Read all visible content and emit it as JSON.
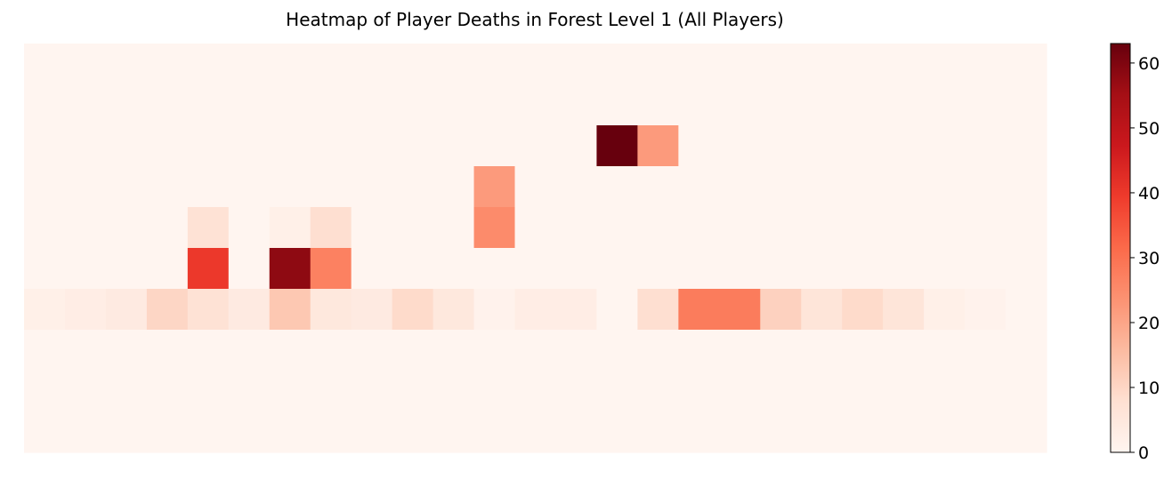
{
  "chart_data": {
    "type": "heatmap",
    "title": "Heatmap of Player Deaths in Forest Level 1 (All Players)",
    "xlabel": "",
    "ylabel": "",
    "rows": 10,
    "cols": 25,
    "grid": false,
    "colormap": "Reds",
    "colorbar": {
      "label": "",
      "range": [
        0,
        63
      ],
      "ticks": [
        0,
        10,
        20,
        30,
        40,
        50,
        60
      ],
      "tick_labels": [
        "0",
        "10",
        "20",
        "30",
        "40",
        "50",
        "60"
      ],
      "placement": "right"
    },
    "cells": [
      {
        "row": 2,
        "col": 14,
        "value": 63
      },
      {
        "row": 2,
        "col": 15,
        "value": 22
      },
      {
        "row": 3,
        "col": 11,
        "value": 22
      },
      {
        "row": 4,
        "col": 4,
        "value": 7
      },
      {
        "row": 4,
        "col": 6,
        "value": 2
      },
      {
        "row": 4,
        "col": 7,
        "value": 8
      },
      {
        "row": 4,
        "col": 11,
        "value": 25
      },
      {
        "row": 5,
        "col": 4,
        "value": 40
      },
      {
        "row": 5,
        "col": 6,
        "value": 58
      },
      {
        "row": 5,
        "col": 7,
        "value": 27
      },
      {
        "row": 6,
        "col": 0,
        "value": 2
      },
      {
        "row": 6,
        "col": 1,
        "value": 3
      },
      {
        "row": 6,
        "col": 2,
        "value": 4
      },
      {
        "row": 6,
        "col": 3,
        "value": 10
      },
      {
        "row": 6,
        "col": 4,
        "value": 7
      },
      {
        "row": 6,
        "col": 5,
        "value": 4
      },
      {
        "row": 6,
        "col": 6,
        "value": 13
      },
      {
        "row": 6,
        "col": 7,
        "value": 5
      },
      {
        "row": 6,
        "col": 8,
        "value": 4
      },
      {
        "row": 6,
        "col": 9,
        "value": 9
      },
      {
        "row": 6,
        "col": 10,
        "value": 5
      },
      {
        "row": 6,
        "col": 11,
        "value": 1
      },
      {
        "row": 6,
        "col": 12,
        "value": 3
      },
      {
        "row": 6,
        "col": 13,
        "value": 3
      },
      {
        "row": 6,
        "col": 14,
        "value": 0
      },
      {
        "row": 6,
        "col": 15,
        "value": 8
      },
      {
        "row": 6,
        "col": 16,
        "value": 28
      },
      {
        "row": 6,
        "col": 17,
        "value": 28
      },
      {
        "row": 6,
        "col": 18,
        "value": 11
      },
      {
        "row": 6,
        "col": 19,
        "value": 6
      },
      {
        "row": 6,
        "col": 20,
        "value": 9
      },
      {
        "row": 6,
        "col": 21,
        "value": 6
      },
      {
        "row": 6,
        "col": 22,
        "value": 2
      },
      {
        "row": 6,
        "col": 23,
        "value": 1
      }
    ]
  }
}
